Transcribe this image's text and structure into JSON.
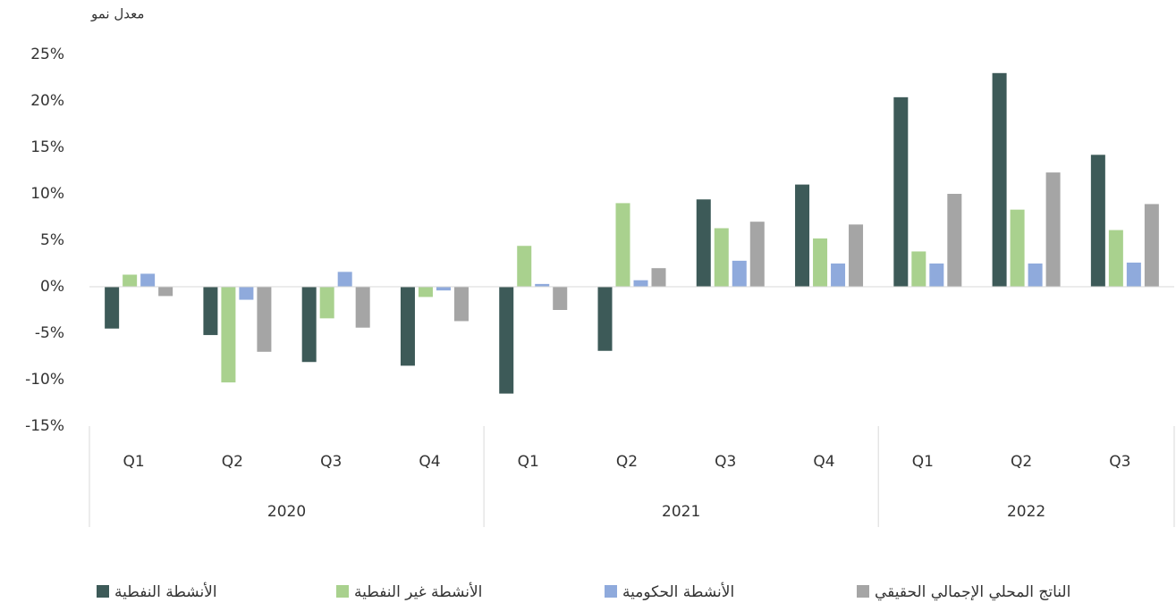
{
  "chart_data": {
    "type": "bar",
    "y_label": "معدل نمو",
    "groups": [
      {
        "name": "2020",
        "categories": [
          "Q1",
          "Q2",
          "Q3",
          "Q4"
        ]
      },
      {
        "name": "2021",
        "categories": [
          "Q1",
          "Q2",
          "Q3",
          "Q4"
        ]
      },
      {
        "name": "2022",
        "categories": [
          "Q1",
          "Q2",
          "Q3"
        ]
      }
    ],
    "series": [
      {
        "name": "الأنشطة النفطية",
        "color": "#3d5a58",
        "values": [
          -4.5,
          -5.2,
          -8.1,
          -8.5,
          -11.5,
          -6.9,
          9.4,
          11.0,
          20.4,
          23.0,
          14.2
        ]
      },
      {
        "name": "الأنشطة غير النفطية",
        "color": "#a9d18e",
        "values": [
          1.3,
          -10.3,
          -3.4,
          -1.1,
          4.4,
          9.0,
          6.3,
          5.2,
          3.8,
          8.3,
          6.1
        ]
      },
      {
        "name": "الأنشطة الحكومية",
        "color": "#8faadc",
        "values": [
          1.4,
          -1.4,
          1.6,
          -0.4,
          0.3,
          0.7,
          2.8,
          2.5,
          2.5,
          2.5,
          2.6
        ]
      },
      {
        "name": "الناتج المحلي الإجمالي الحقيقي",
        "color": "#a5a5a5",
        "values": [
          -1.0,
          -7.0,
          -4.4,
          -3.7,
          -2.5,
          2.0,
          7.0,
          6.7,
          10.0,
          12.3,
          8.9
        ]
      }
    ],
    "ylim": [
      -15,
      25
    ],
    "yticks": [
      {
        "value": -15,
        "label": "-15%"
      },
      {
        "value": -10,
        "label": "-10%"
      },
      {
        "value": -5,
        "label": "-5%"
      },
      {
        "value": 0,
        "label": "0%"
      },
      {
        "value": 5,
        "label": "5%"
      },
      {
        "value": 10,
        "label": "10%"
      },
      {
        "value": 15,
        "label": "15%"
      },
      {
        "value": 20,
        "label": "20%"
      },
      {
        "value": 25,
        "label": "25%"
      }
    ],
    "legend": "bottom"
  }
}
